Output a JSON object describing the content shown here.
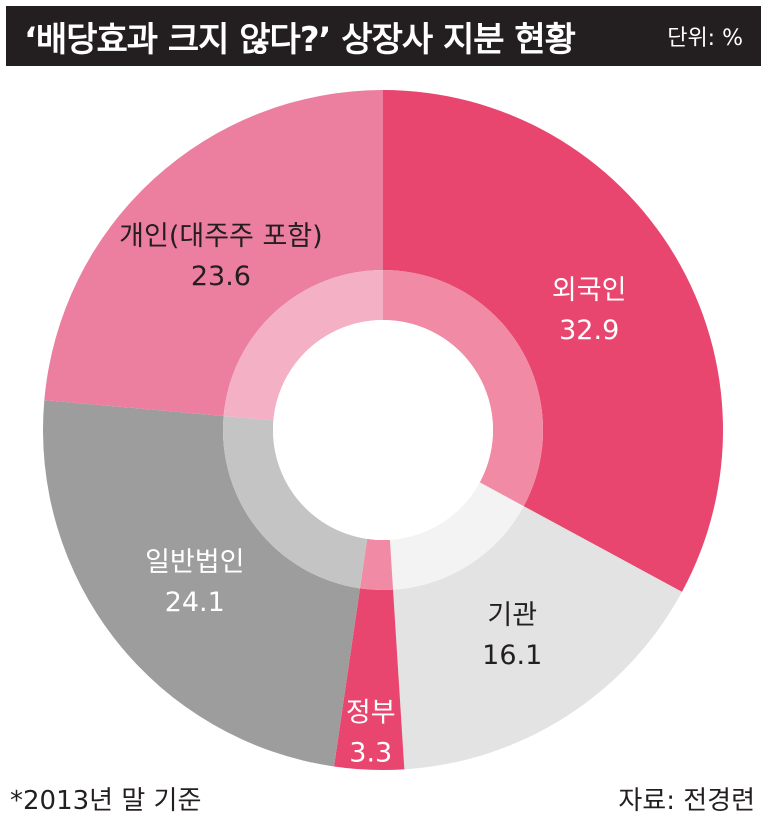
{
  "header": {
    "title": "‘배당효과 크지 않다?’ 상장사 지분 현황",
    "unit": "단위: %"
  },
  "footer": {
    "footnote": "*2013년 말 기준",
    "source": "자료: 전경련"
  },
  "chart_data": {
    "type": "pie",
    "title": "‘배당효과 크지 않다?’ 상장사 지분 현황",
    "unit": "%",
    "categories": [
      "외국인",
      "기관",
      "정부",
      "일반법인",
      "개인(대주주 포함)"
    ],
    "values": [
      32.9,
      16.1,
      3.3,
      24.1,
      23.6
    ],
    "value_labels": [
      "32.9",
      "16.1",
      "3.3",
      "24.1",
      "23.6"
    ],
    "colors": [
      "#e8466e",
      "#e3e3e3",
      "#e8466e",
      "#9d9d9d",
      "#ec7ea0"
    ],
    "inner_colors": [
      "#f18aa5",
      "#f3f3f3",
      "#f18aa5",
      "#c4c4c4",
      "#f4b0c5"
    ],
    "label_colors": [
      "#ffffff",
      "#231f20",
      "#ffffff",
      "#ffffff",
      "#231f20"
    ],
    "start_angle_deg": 0,
    "donut": true
  }
}
